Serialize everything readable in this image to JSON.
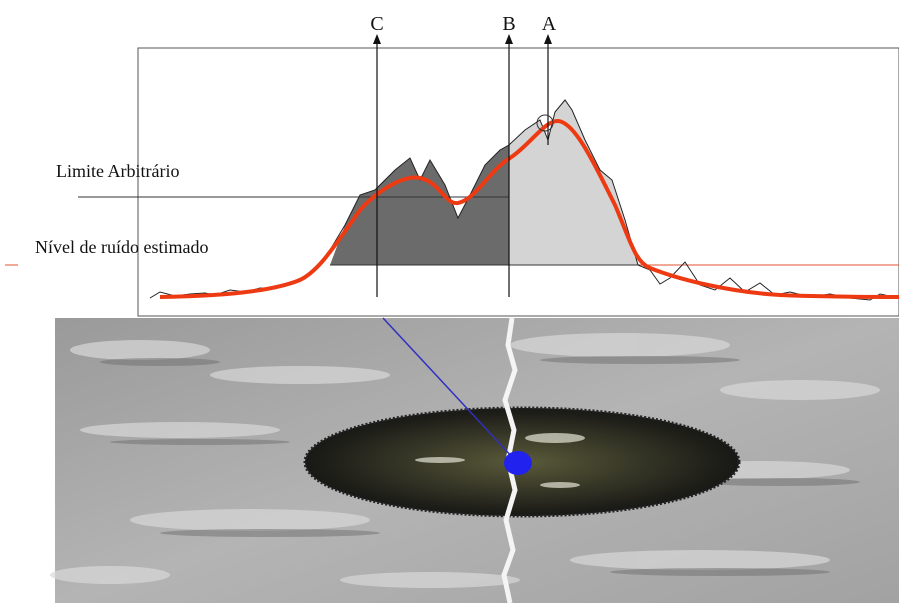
{
  "markers": {
    "c": "C",
    "b": "B",
    "a": "A"
  },
  "labels": {
    "threshold": "Limite Arbitrário",
    "noise": "Nível de ruído estimado"
  }
}
